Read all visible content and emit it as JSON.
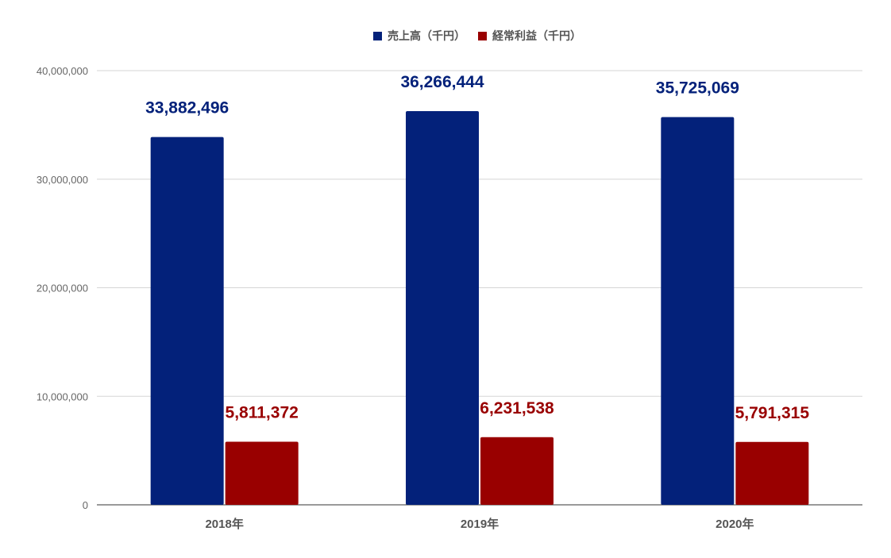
{
  "chart_data": {
    "type": "bar",
    "categories": [
      "2018年",
      "2019年",
      "2020年"
    ],
    "series": [
      {
        "name": "売上高（千円）",
        "values": [
          33882496,
          36266444,
          35725069
        ],
        "labels": [
          "33,882,496",
          "36,266,444",
          "35,725,069"
        ],
        "color": "#03217a"
      },
      {
        "name": "経常利益（千円）",
        "values": [
          5811372,
          6231538,
          5791315
        ],
        "labels": [
          "5,811,372",
          "6,231,538",
          "5,791,315"
        ],
        "color": "#990000"
      }
    ],
    "yticks": [
      "0",
      "10,000,000",
      "20,000,000",
      "30,000,000",
      "40,000,000"
    ],
    "ylim": [
      0,
      40000000
    ],
    "grid": true,
    "legend_position": "top-center"
  }
}
